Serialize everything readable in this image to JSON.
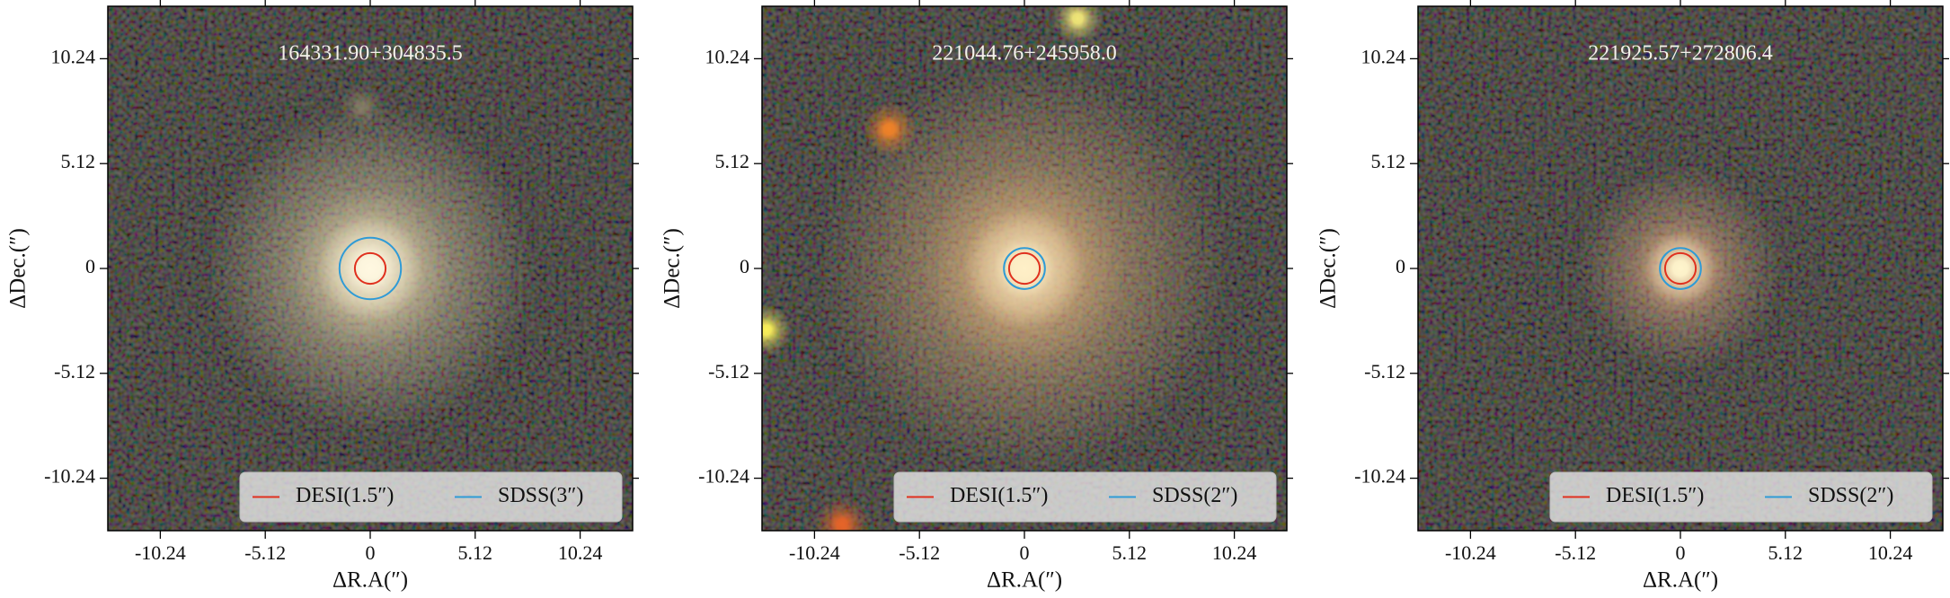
{
  "chart_data": [
    {
      "type": "image",
      "title": "164331.90+304835.5",
      "xlabel": "ΔR.A(″)",
      "ylabel": "ΔDec.(″)",
      "xlim": [
        -12.8,
        12.8
      ],
      "ylim": [
        -12.8,
        12.8
      ],
      "xticks": [
        -10.24,
        -5.12,
        0,
        5.12,
        10.24
      ],
      "yticks": [
        -10.24,
        -5.12,
        0,
        5.12,
        10.24
      ],
      "legend": "lower right",
      "series": [
        {
          "name": "DESI(1.5″)",
          "color": "#e0301e",
          "radius": 0.75
        },
        {
          "name": "SDSS(3″)",
          "color": "#2f9bd6",
          "radius": 1.5
        }
      ]
    },
    {
      "type": "image",
      "title": "221044.76+245958.0",
      "xlabel": "ΔR.A(″)",
      "ylabel": "ΔDec.(″)",
      "xlim": [
        -12.8,
        12.8
      ],
      "ylim": [
        -12.8,
        12.8
      ],
      "xticks": [
        -10.24,
        -5.12,
        0,
        5.12,
        10.24
      ],
      "yticks": [
        -10.24,
        -5.12,
        0,
        5.12,
        10.24
      ],
      "legend": "lower right",
      "series": [
        {
          "name": "DESI(1.5″)",
          "color": "#e0301e",
          "radius": 0.75
        },
        {
          "name": "SDSS(2″)",
          "color": "#2f9bd6",
          "radius": 1
        }
      ]
    },
    {
      "type": "image",
      "title": "221925.57+272806.4",
      "xlabel": "ΔR.A(″)",
      "ylabel": "ΔDec.(″)",
      "xlim": [
        -12.8,
        12.8
      ],
      "ylim": [
        -12.8,
        12.8
      ],
      "xticks": [
        -10.24,
        -5.12,
        0,
        5.12,
        10.24
      ],
      "yticks": [
        -10.24,
        -5.12,
        0,
        5.12,
        10.24
      ],
      "legend": "lower right",
      "series": [
        {
          "name": "DESI(1.5″)",
          "color": "#e0301e",
          "radius": 0.75
        },
        {
          "name": "SDSS(2″)",
          "color": "#2f9bd6",
          "radius": 1
        }
      ]
    }
  ]
}
